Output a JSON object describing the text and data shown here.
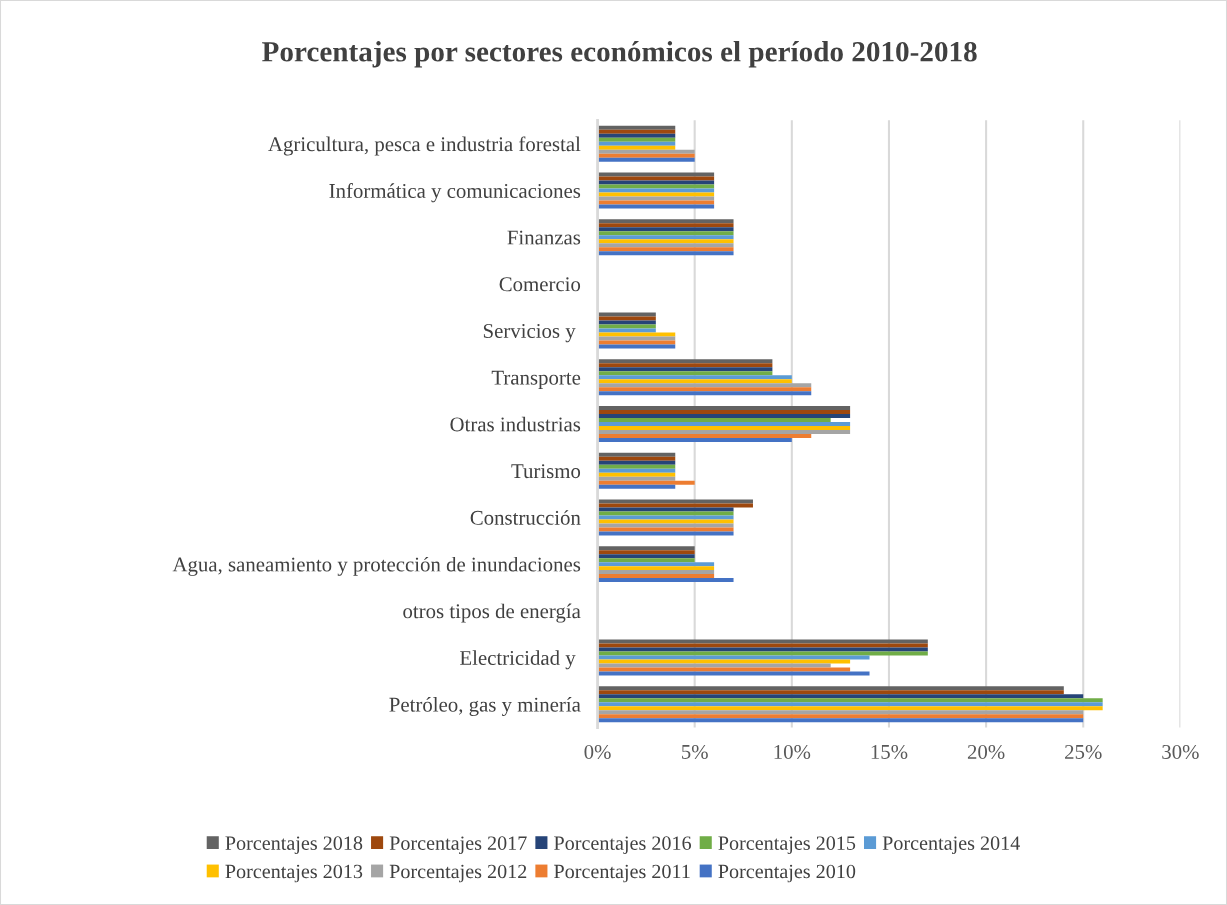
{
  "chart_data": {
    "type": "bar",
    "orientation": "horizontal",
    "title": "Porcentajes por sectores económicos el período 2010-2018",
    "categories": [
      "Agricultura, pesca e industria forestal",
      "Informática y comunicaciones",
      "Finanzas",
      "Comercio",
      "Servicios y ",
      "Transporte",
      "Otras industrias",
      "Turismo",
      "Construcción",
      "Agua, saneamiento y protección de inundaciones",
      "otros tipos de energía",
      "Electricidad y ",
      "Petróleo, gas y minería"
    ],
    "series": [
      {
        "name": "Porcentajes 2018",
        "color": "#636363",
        "values": [
          4,
          6,
          7,
          null,
          3,
          9,
          13,
          4,
          8,
          5,
          null,
          17,
          24
        ]
      },
      {
        "name": "Porcentajes 2017",
        "color": "#9e480e",
        "values": [
          4,
          6,
          7,
          null,
          3,
          9,
          13,
          4,
          8,
          5,
          null,
          17,
          24
        ]
      },
      {
        "name": "Porcentajes 2016",
        "color": "#264478",
        "values": [
          4,
          6,
          7,
          null,
          3,
          9,
          13,
          4,
          7,
          5,
          null,
          17,
          25
        ]
      },
      {
        "name": "Porcentajes 2015",
        "color": "#70ad47",
        "values": [
          4,
          6,
          7,
          null,
          3,
          9,
          12,
          4,
          7,
          5,
          null,
          17,
          26
        ]
      },
      {
        "name": "Porcentajes 2014",
        "color": "#5b9bd5",
        "values": [
          4,
          6,
          7,
          null,
          3,
          10,
          13,
          4,
          7,
          6,
          null,
          14,
          26
        ]
      },
      {
        "name": "Porcentajes 2013",
        "color": "#ffc000",
        "values": [
          4,
          6,
          7,
          null,
          4,
          10,
          13,
          4,
          7,
          6,
          null,
          13,
          26
        ]
      },
      {
        "name": "Porcentajes 2012",
        "color": "#a5a5a5",
        "values": [
          5,
          6,
          7,
          null,
          4,
          11,
          13,
          4,
          7,
          6,
          null,
          12,
          25
        ]
      },
      {
        "name": "Porcentajes 2011",
        "color": "#ed7d31",
        "values": [
          5,
          6,
          7,
          null,
          4,
          11,
          11,
          5,
          7,
          6,
          null,
          13,
          25
        ]
      },
      {
        "name": "Porcentajes 2010",
        "color": "#4472c4",
        "values": [
          5,
          6,
          7,
          null,
          4,
          11,
          10,
          4,
          7,
          7,
          null,
          14,
          25
        ]
      }
    ],
    "xlim": [
      0,
      30
    ],
    "xticks": [
      {
        "value": 0,
        "label": "0%"
      },
      {
        "value": 5,
        "label": "5%"
      },
      {
        "value": 10,
        "label": "10%"
      },
      {
        "value": 15,
        "label": "15%"
      },
      {
        "value": 20,
        "label": "20%"
      },
      {
        "value": 25,
        "label": "25%"
      },
      {
        "value": 30,
        "label": "30%"
      }
    ],
    "grid": "x",
    "legend": "bottom"
  }
}
